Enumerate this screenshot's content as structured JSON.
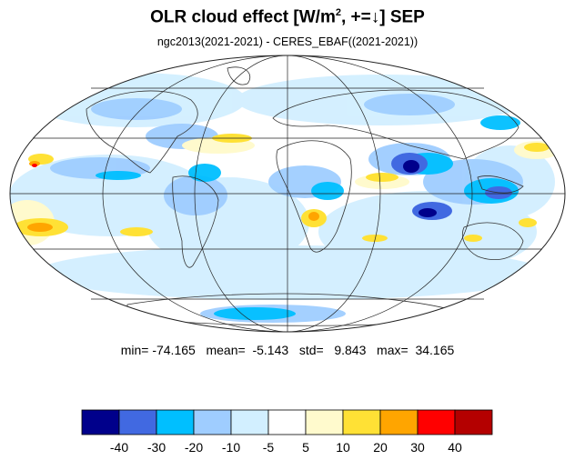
{
  "title": {
    "prefix": "OLR cloud effect [W/m",
    "superscript": "2",
    "suffix": ", +=↓]  SEP"
  },
  "subtitle": "ngc2013(2021-2021) - CERES_EBAF((2021-2021))",
  "stats": {
    "text": "min= -74.165   mean=  -5.143   std=   9.843   max=  34.165",
    "min": -74.165,
    "mean": -5.143,
    "std": 9.843,
    "max": 34.165
  },
  "map": {
    "projection": "mollweide",
    "graticule": {
      "lat_lines": [
        -60,
        -30,
        0,
        30,
        60
      ],
      "lon_lines": [
        -120,
        -60,
        0,
        60,
        120
      ]
    }
  },
  "colorbar": {
    "levels": [
      "-40",
      "-30",
      "-20",
      "-10",
      "-5",
      "5",
      "10",
      "20",
      "30",
      "40"
    ],
    "colors": [
      "#00008b",
      "#4169e1",
      "#00bfff",
      "#9fcdff",
      "#d2efff",
      "#ffffff",
      "#fffacd",
      "#ffe135",
      "#ffa500",
      "#ff0000",
      "#b40000"
    ]
  }
}
